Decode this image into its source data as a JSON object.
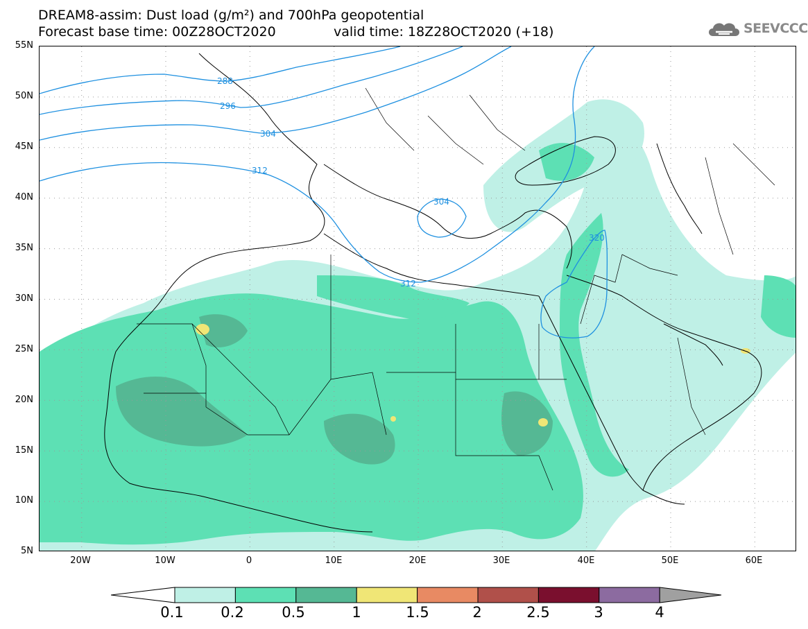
{
  "title": {
    "line1": "DREAM8-assim: Dust load (g/m²) and 700hPa geopotential",
    "line2": "Forecast base time: 00Z28OCT2020",
    "valid": "valid time: 18Z28OCT2020 (+18)"
  },
  "logo": {
    "text": "SEEVCCC",
    "icon": "cloud-icon"
  },
  "map": {
    "lat_labels": [
      "55N",
      "50N",
      "45N",
      "40N",
      "35N",
      "30N",
      "25N",
      "20N",
      "15N",
      "10N",
      "5N"
    ],
    "lon_labels": [
      "20W",
      "10W",
      "0",
      "10E",
      "20E",
      "30E",
      "40E",
      "50E",
      "60E"
    ],
    "contours": [
      {
        "label": "288"
      },
      {
        "label": "296"
      },
      {
        "label": "304"
      },
      {
        "label": "312"
      },
      {
        "label": "304"
      },
      {
        "label": "312"
      },
      {
        "label": "320"
      }
    ],
    "colors": {
      "land_border": "#000000",
      "contour": "#1e90e0",
      "gridline": "#9a9a9a"
    }
  },
  "colorbar": {
    "labels": [
      "0.1",
      "0.2",
      "0.5",
      "1",
      "1.5",
      "2",
      "2.5",
      "3",
      "4"
    ],
    "colors": [
      "#ffffff",
      "#bff0e6",
      "#5de0b4",
      "#55b894",
      "#f0e676",
      "#e88a63",
      "#b0504a",
      "#7a0f2e",
      "#8c6ba0",
      "#a0a0a0"
    ]
  }
}
